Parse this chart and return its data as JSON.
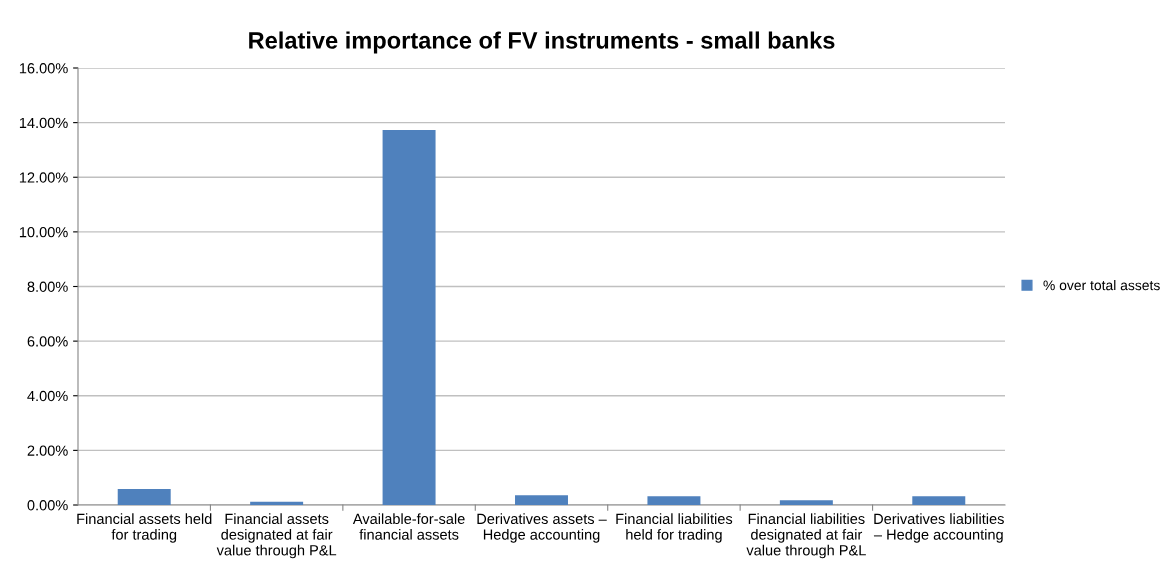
{
  "chart_data": {
    "type": "bar",
    "title": "Relative importance of FV instruments - small banks",
    "categories": [
      "Financial assets held\nfor trading",
      "Financial assets\ndesignated at fair\nvalue through P&L",
      "Available-for-sale\nfinancial assets",
      "Derivatives assets –\nHedge accounting",
      "Financial liabilities\nheld for trading",
      "Financial liabilities\ndesignated at fair\nvalue through P&L",
      "Derivatives liabilities\n– Hedge accounting"
    ],
    "series": [
      {
        "name": "% over total assets",
        "color": "#4f81bd",
        "values": [
          0.59,
          0.12,
          13.73,
          0.36,
          0.32,
          0.17,
          0.32
        ]
      }
    ],
    "ylim": [
      0,
      16
    ],
    "yticks": [
      {
        "value": 0,
        "label": "0.00%"
      },
      {
        "value": 2,
        "label": "2.00%"
      },
      {
        "value": 4,
        "label": "4.00%"
      },
      {
        "value": 6,
        "label": "6.00%"
      },
      {
        "value": 8,
        "label": "8.00%"
      },
      {
        "value": 10,
        "label": "10.00%"
      },
      {
        "value": 12,
        "label": "12.00%"
      },
      {
        "value": 14,
        "label": "14.00%"
      },
      {
        "value": 16,
        "label": "16.00%"
      }
    ],
    "grid": "y",
    "legend": "right"
  }
}
